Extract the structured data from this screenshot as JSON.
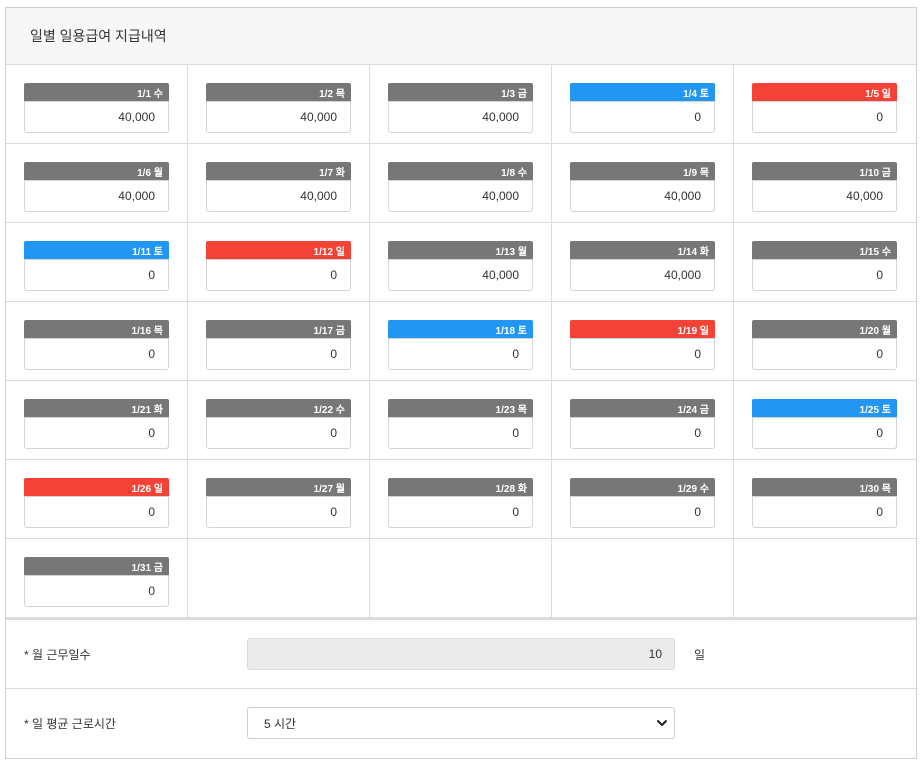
{
  "section": {
    "title": "일별 일용급여 지급내역"
  },
  "days": [
    {
      "label": "1/1 수",
      "value": "40,000",
      "type": "weekday"
    },
    {
      "label": "1/2 목",
      "value": "40,000",
      "type": "weekday"
    },
    {
      "label": "1/3 금",
      "value": "40,000",
      "type": "weekday"
    },
    {
      "label": "1/4 토",
      "value": "0",
      "type": "sat"
    },
    {
      "label": "1/5 일",
      "value": "0",
      "type": "sun"
    },
    {
      "label": "1/6 월",
      "value": "40,000",
      "type": "weekday"
    },
    {
      "label": "1/7 화",
      "value": "40,000",
      "type": "weekday"
    },
    {
      "label": "1/8 수",
      "value": "40,000",
      "type": "weekday"
    },
    {
      "label": "1/9 목",
      "value": "40,000",
      "type": "weekday"
    },
    {
      "label": "1/10 금",
      "value": "40,000",
      "type": "weekday"
    },
    {
      "label": "1/11 토",
      "value": "0",
      "type": "sat"
    },
    {
      "label": "1/12 일",
      "value": "0",
      "type": "sun"
    },
    {
      "label": "1/13 월",
      "value": "40,000",
      "type": "weekday"
    },
    {
      "label": "1/14 화",
      "value": "40,000",
      "type": "weekday"
    },
    {
      "label": "1/15 수",
      "value": "0",
      "type": "weekday"
    },
    {
      "label": "1/16 목",
      "value": "0",
      "type": "weekday"
    },
    {
      "label": "1/17 금",
      "value": "0",
      "type": "weekday"
    },
    {
      "label": "1/18 토",
      "value": "0",
      "type": "sat"
    },
    {
      "label": "1/19 일",
      "value": "0",
      "type": "sun"
    },
    {
      "label": "1/20 월",
      "value": "0",
      "type": "weekday"
    },
    {
      "label": "1/21 화",
      "value": "0",
      "type": "weekday"
    },
    {
      "label": "1/22 수",
      "value": "0",
      "type": "weekday"
    },
    {
      "label": "1/23 목",
      "value": "0",
      "type": "weekday"
    },
    {
      "label": "1/24 금",
      "value": "0",
      "type": "weekday"
    },
    {
      "label": "1/25 토",
      "value": "0",
      "type": "sat"
    },
    {
      "label": "1/26 일",
      "value": "0",
      "type": "sun"
    },
    {
      "label": "1/27 월",
      "value": "0",
      "type": "weekday"
    },
    {
      "label": "1/28 화",
      "value": "0",
      "type": "weekday"
    },
    {
      "label": "1/29 수",
      "value": "0",
      "type": "weekday"
    },
    {
      "label": "1/30 목",
      "value": "0",
      "type": "weekday"
    },
    {
      "label": "1/31 금",
      "value": "0",
      "type": "weekday"
    }
  ],
  "colors": {
    "weekday": "#777777",
    "saturday": "#2196f3",
    "sunday": "#f44336"
  },
  "workdays": {
    "label": "* 월 근무일수",
    "value": "10",
    "unit": "일"
  },
  "avg_hours": {
    "label": "* 일 평균 근로시간",
    "selected": "5 시간",
    "icon": "chevron-down-icon"
  }
}
